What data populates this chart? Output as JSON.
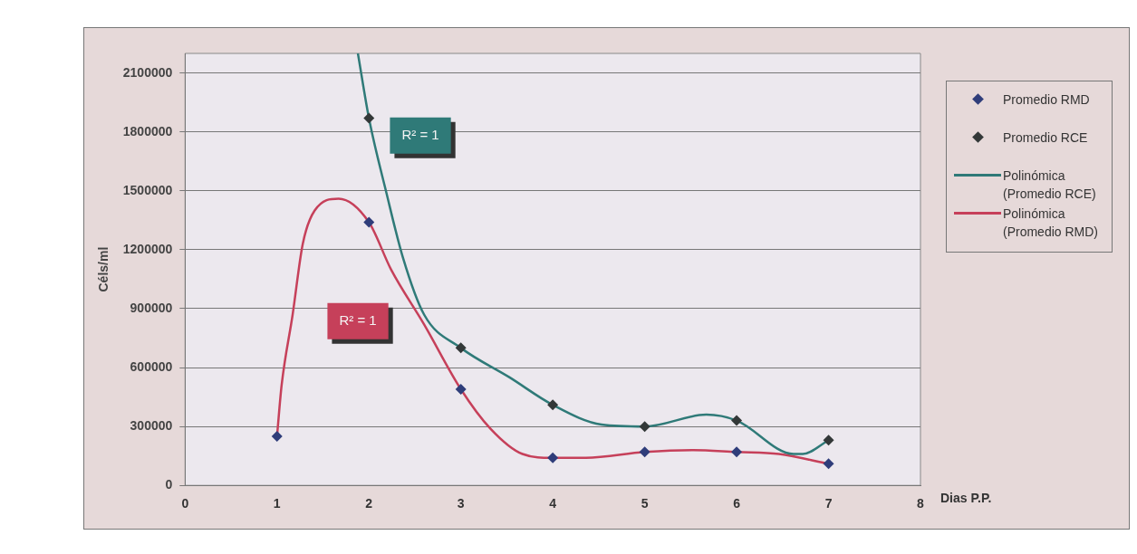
{
  "chart_data": {
    "type": "scatter",
    "xlabel": "Dias P.P.",
    "ylabel": "Céls/ml",
    "xlim": [
      0,
      8
    ],
    "xticks": [
      0,
      1,
      2,
      3,
      4,
      5,
      6,
      7,
      8
    ],
    "ylim": [
      0,
      2200000
    ],
    "yticks": [
      0,
      300000,
      600000,
      900000,
      1200000,
      1500000,
      1800000,
      2100000
    ],
    "grid": "y",
    "legend": "right",
    "series": [
      {
        "name": "Promedio RMD",
        "marker": "diamond",
        "color": "#2f3d7a",
        "x": [
          1,
          2,
          3,
          4,
          5,
          6,
          7
        ],
        "values": [
          250000,
          1340000,
          490000,
          140000,
          170000,
          170000,
          110000
        ]
      },
      {
        "name": "Promedio RCE",
        "marker": "diamond",
        "color": "#333838",
        "x": [
          2,
          3,
          4,
          5,
          6,
          7
        ],
        "values": [
          1870000,
          700000,
          410000,
          300000,
          330000,
          230000
        ]
      },
      {
        "name": "Polinómica (Promedio RCE)",
        "type": "line",
        "marker": "none",
        "color": "#2f7a78",
        "x": [
          1.88,
          2,
          2.19,
          2.37,
          2.6,
          3,
          3.53,
          4,
          4.53,
          5,
          5.67,
          6,
          6.62,
          6.72,
          7
        ],
        "values": [
          2200000,
          1870000,
          1490000,
          1160000,
          870000,
          700000,
          550000,
          410000,
          310000,
          300000,
          360000,
          330000,
          160000,
          160000,
          230000
        ]
      },
      {
        "name": "Polinómica (Promedio RMD)",
        "type": "line",
        "marker": "none",
        "color": "#c6405a",
        "x": [
          1,
          1.05,
          1.17,
          1.28,
          1.41,
          1.67,
          2,
          2.24,
          2.6,
          3,
          3.32,
          3.67,
          4,
          4.36,
          5,
          5.53,
          6,
          6.46,
          7
        ],
        "values": [
          250000,
          510000,
          870000,
          1230000,
          1400000,
          1460000,
          1340000,
          1100000,
          820000,
          490000,
          290000,
          160000,
          140000,
          140000,
          170000,
          180000,
          170000,
          160000,
          110000
        ]
      }
    ],
    "annotations": [
      "R² = 1",
      "R² = 1"
    ]
  }
}
